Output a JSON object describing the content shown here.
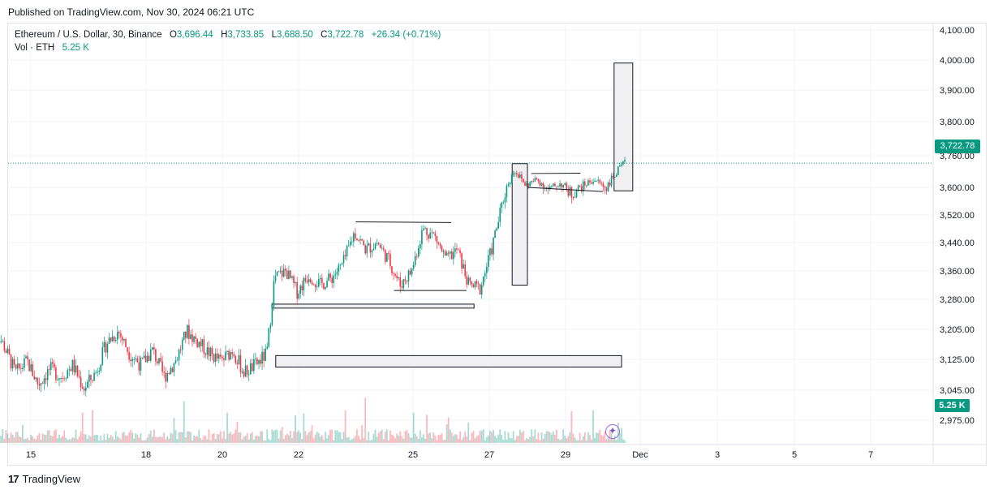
{
  "header": {
    "published": "Published on TradingView.com, Nov 30, 2024 06:21 UTC"
  },
  "legend": {
    "symbol": "Ethereum / U.S. Dollar, 30, Binance",
    "open_label": "O",
    "open": "3,696.44",
    "high_label": "H",
    "high": "3,733.85",
    "low_label": "L",
    "low": "3,688.50",
    "close_label": "C",
    "close": "3,722.78",
    "change": "+26.34 (+0.71%)",
    "vol_label": "Vol · ETH",
    "vol_value": "5.25 K"
  },
  "badges": {
    "last_price": "3,722.78",
    "last_volume": "5.25 K"
  },
  "footer": {
    "brand": "TradingView",
    "logo": "17"
  },
  "colors": {
    "up": "#089981",
    "down": "#f23645",
    "price_line": "#089981",
    "box_fill": "#f0f0f2",
    "box_stroke": "#131722"
  },
  "chart_data": {
    "type": "candlestick",
    "symbol": "ETHUSD",
    "interval": "30",
    "y_ticks": [
      "4,100.00",
      "4,000.00",
      "3,900.00",
      "3,800.00",
      "3,760.00",
      "3,600.00",
      "3,520.00",
      "3,440.00",
      "3,360.00",
      "3,280.00",
      "3,205.00",
      "3,125.00",
      "3,045.00",
      "2,975.00"
    ],
    "x_ticks": [
      "15",
      "18",
      "20",
      "22",
      "25",
      "27",
      "29",
      "Dec",
      "3",
      "5",
      "7"
    ],
    "price_line": 3722.78,
    "price_path": [
      [
        14.0,
        3215
      ],
      [
        14.3,
        3160
      ],
      [
        14.6,
        3090
      ],
      [
        14.9,
        3120
      ],
      [
        15.2,
        3060
      ],
      [
        15.5,
        3100
      ],
      [
        15.8,
        3080
      ],
      [
        16.1,
        3110
      ],
      [
        16.4,
        3050
      ],
      [
        16.7,
        3090
      ],
      [
        17.0,
        3170
      ],
      [
        17.3,
        3200
      ],
      [
        17.6,
        3140
      ],
      [
        17.9,
        3110
      ],
      [
        18.2,
        3150
      ],
      [
        18.5,
        3080
      ],
      [
        18.8,
        3120
      ],
      [
        19.1,
        3200
      ],
      [
        19.4,
        3170
      ],
      [
        19.7,
        3140
      ],
      [
        20.0,
        3120
      ],
      [
        20.3,
        3150
      ],
      [
        20.6,
        3090
      ],
      [
        20.9,
        3110
      ],
      [
        21.2,
        3140
      ],
      [
        21.4,
        3340
      ],
      [
        21.7,
        3360
      ],
      [
        22.0,
        3300
      ],
      [
        22.3,
        3350
      ],
      [
        22.6,
        3320
      ],
      [
        22.9,
        3340
      ],
      [
        23.2,
        3380
      ],
      [
        23.5,
        3470
      ],
      [
        23.8,
        3420
      ],
      [
        24.1,
        3440
      ],
      [
        24.4,
        3390
      ],
      [
        24.7,
        3320
      ],
      [
        25.0,
        3360
      ],
      [
        25.3,
        3480
      ],
      [
        25.6,
        3460
      ],
      [
        25.9,
        3390
      ],
      [
        26.2,
        3420
      ],
      [
        26.5,
        3320
      ],
      [
        26.8,
        3310
      ],
      [
        27.1,
        3420
      ],
      [
        27.4,
        3560
      ],
      [
        27.7,
        3690
      ],
      [
        28.0,
        3610
      ],
      [
        28.3,
        3640
      ],
      [
        28.6,
        3590
      ],
      [
        28.9,
        3620
      ],
      [
        29.2,
        3580
      ],
      [
        29.5,
        3610
      ],
      [
        29.8,
        3640
      ],
      [
        30.1,
        3600
      ],
      [
        30.4,
        3680
      ],
      [
        30.6,
        3722
      ]
    ],
    "zones": [
      {
        "x0": 21.4,
        "x1": 30.5,
        "y0": 3135,
        "y1": 3105
      },
      {
        "x0": 21.3,
        "x1": 26.6,
        "y0": 3268,
        "y1": 3258
      },
      {
        "x0": 27.6,
        "x1": 28.0,
        "y0": 3720,
        "y1": 3320
      },
      {
        "x0": 30.3,
        "x1": 30.8,
        "y0": 3990,
        "y1": 3590
      }
    ],
    "trendlines": [
      {
        "x0": 23.5,
        "x1": 26.0,
        "y0": 3500,
        "y1": 3498
      },
      {
        "x0": 24.5,
        "x1": 26.4,
        "y0": 3305,
        "y1": 3305
      },
      {
        "x0": 28.1,
        "x1": 29.4,
        "y0": 3670,
        "y1": 3672
      },
      {
        "x0": 28.0,
        "x1": 30.0,
        "y0": 3600,
        "y1": 3588
      }
    ]
  }
}
